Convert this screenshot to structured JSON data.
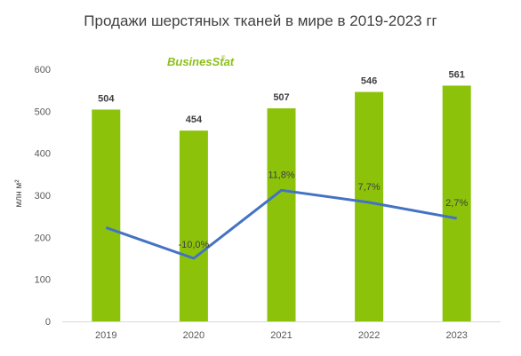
{
  "chart_data": {
    "type": "bar",
    "title": "Продажи шерстяных тканей в мире в 2019-2023 гг",
    "ylabel": "млн м²",
    "categories": [
      "2019",
      "2020",
      "2021",
      "2022",
      "2023"
    ],
    "values": [
      504,
      454,
      507,
      546,
      561
    ],
    "ylim": [
      0,
      600
    ],
    "yticks": [
      0,
      100,
      200,
      300,
      400,
      500,
      600
    ],
    "bar_color": "#8cc30a",
    "line": {
      "name": "",
      "growth_labels": [
        "",
        "-10,0%",
        "11,8%",
        "7,7%",
        "2,7%"
      ],
      "values": [
        223,
        150,
        312,
        283,
        245
      ],
      "color": "#4472c4"
    },
    "grid": false,
    "legend": "none"
  },
  "logo": {
    "text": "BusinesStat",
    "mark": "®"
  }
}
